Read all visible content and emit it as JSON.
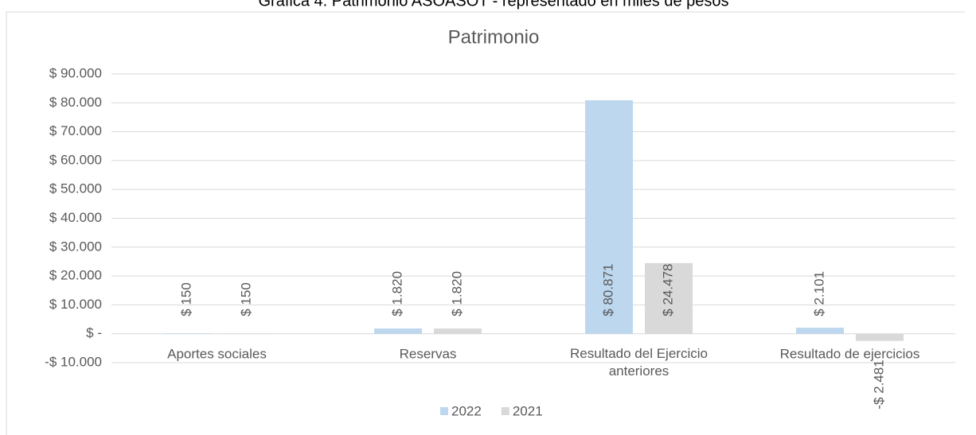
{
  "caption": "Gráfica 4. Patrimonio ASOASOT - representado en miles de pesos",
  "chart_data": {
    "type": "bar",
    "title": "Patrimonio",
    "categories": [
      "Aportes sociales",
      "Reservas",
      "Resultado del Ejercicio anteriores",
      "Resultado de ejercicios"
    ],
    "series": [
      {
        "name": "2022",
        "color": "#bdd7ee",
        "values": [
          150,
          1820,
          80871,
          2101
        ],
        "value_labels": [
          "$ 150",
          "$ 1.820",
          "$ 80.871",
          "$ 2.101"
        ]
      },
      {
        "name": "2021",
        "color": "#d9d9d9",
        "values": [
          150,
          1820,
          24478,
          -2481
        ],
        "value_labels": [
          "$ 150",
          "$ 1.820",
          "$ 24.478",
          "-$ 2.481"
        ]
      }
    ],
    "ylim": [
      -10000,
      90000
    ],
    "yticks": [
      {
        "value": -10000,
        "label": "-$ 10.000"
      },
      {
        "value": 0,
        "label": "$ -"
      },
      {
        "value": 10000,
        "label": "$ 10.000"
      },
      {
        "value": 20000,
        "label": "$ 20.000"
      },
      {
        "value": 30000,
        "label": "$ 30.000"
      },
      {
        "value": 40000,
        "label": "$ 40.000"
      },
      {
        "value": 50000,
        "label": "$ 50.000"
      },
      {
        "value": 60000,
        "label": "$ 60.000"
      },
      {
        "value": 70000,
        "label": "$ 70.000"
      },
      {
        "value": 80000,
        "label": "$ 80.000"
      },
      {
        "value": 90000,
        "label": "$ 90.000"
      }
    ],
    "grid": true,
    "legend": "bottom"
  }
}
